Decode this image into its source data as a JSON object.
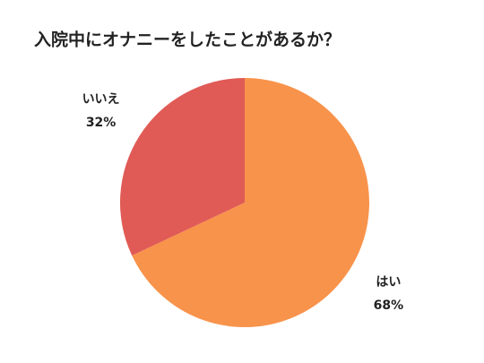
{
  "chart_data": {
    "type": "pie",
    "title": "入院中にオナニーをしたことがあるか？",
    "categories": [
      "はい",
      "いいえ"
    ],
    "values": [
      68,
      32
    ],
    "value_labels": [
      "68%",
      "32%"
    ],
    "colors": [
      "#f8934b",
      "#e05b56"
    ]
  }
}
